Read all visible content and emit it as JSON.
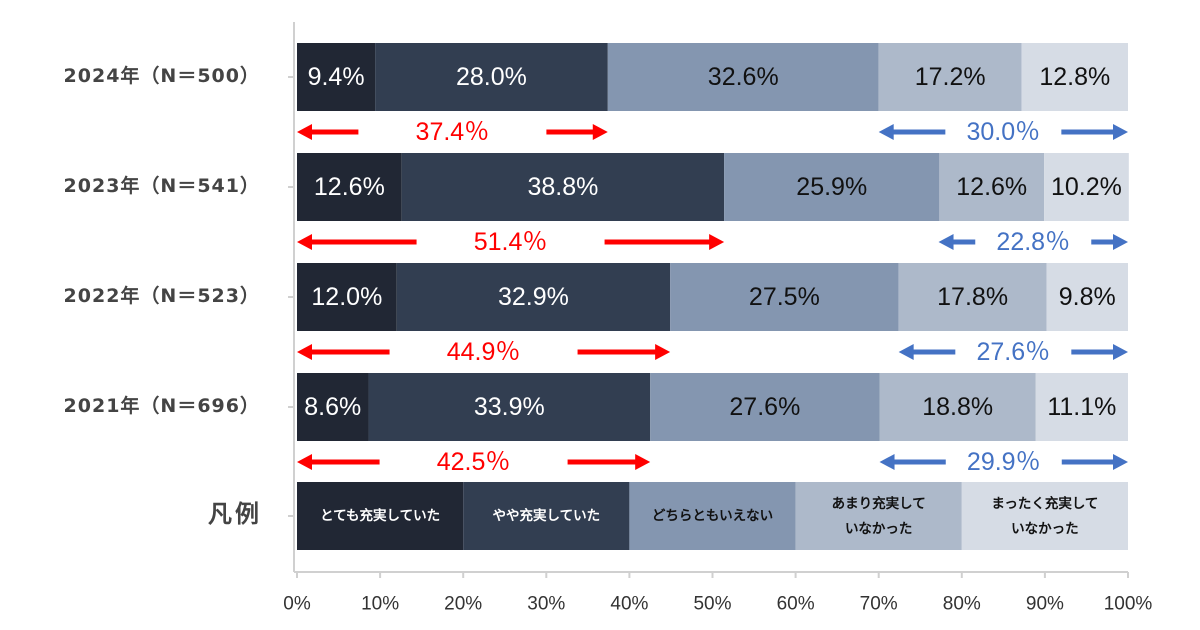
{
  "chart_data": {
    "type": "bar",
    "orientation": "horizontal",
    "stacked": true,
    "percent": true,
    "categories": [
      "2024年（N＝500）",
      "2023年（N＝541）",
      "2022年（N＝523）",
      "2021年（N＝696）"
    ],
    "series": [
      {
        "name": "とても充実していた",
        "values": [
          9.4,
          12.6,
          12.0,
          8.6
        ],
        "labels": [
          "9.4%",
          "12.6%",
          "12.0%",
          "8.6%"
        ],
        "color": "#212734",
        "text_color": "#ffffff"
      },
      {
        "name": "やや充実していた",
        "values": [
          28.0,
          38.8,
          32.9,
          33.9
        ],
        "labels": [
          "28.0%",
          "38.8%",
          "32.9%",
          "33.9%"
        ],
        "color": "#323e51",
        "text_color": "#ffffff"
      },
      {
        "name": "どちらともいえない",
        "values": [
          32.6,
          25.9,
          27.5,
          27.6
        ],
        "labels": [
          "32.6%",
          "25.9%",
          "27.5%",
          "27.6%"
        ],
        "color": "#8496b0",
        "text_color": "#111111"
      },
      {
        "name": "あまり充実していなかった",
        "values": [
          17.2,
          12.6,
          17.8,
          18.8
        ],
        "labels": [
          "17.2%",
          "12.6%",
          "17.8%",
          "18.8%"
        ],
        "color": "#adb9ca",
        "text_color": "#111111"
      },
      {
        "name": "まったく充実していなかった",
        "values": [
          12.8,
          10.2,
          9.8,
          11.1
        ],
        "labels": [
          "12.8%",
          "10.2%",
          "9.8%",
          "11.1%"
        ],
        "color": "#d6dce5",
        "text_color": "#111111"
      }
    ],
    "positive_totals": {
      "labels": [
        "37.4％",
        "51.4％",
        "44.9％",
        "42.5％"
      ],
      "values": [
        37.4,
        51.4,
        44.9,
        42.5
      ],
      "color": "#ff0000"
    },
    "negative_totals": {
      "labels": [
        "30.0％",
        "22.8％",
        "27.6％",
        "29.9％"
      ],
      "values": [
        30.0,
        22.8,
        27.6,
        29.9
      ],
      "color": "#4472c4"
    },
    "legend": {
      "title": "凡例",
      "placement": "bottom",
      "items": [
        [
          "とても充実していた"
        ],
        [
          "やや充実していた"
        ],
        [
          "どちらともいえない"
        ],
        [
          "あまり充実して",
          "いなかった"
        ],
        [
          "まったく充実して",
          "いなかった"
        ]
      ]
    },
    "xaxis": {
      "ticks": [
        0,
        10,
        20,
        30,
        40,
        50,
        60,
        70,
        80,
        90,
        100
      ],
      "tick_labels": [
        "0%",
        "10%",
        "20%",
        "30%",
        "40%",
        "50%",
        "60%",
        "70%",
        "80%",
        "90%",
        "100%"
      ],
      "range": [
        0,
        100
      ]
    },
    "grid": false
  }
}
